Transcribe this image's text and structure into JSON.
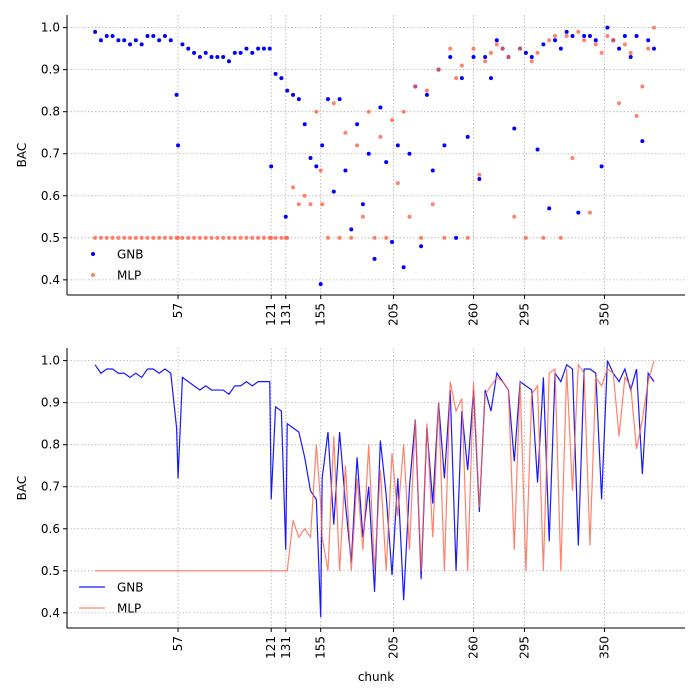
{
  "chart_data": [
    {
      "type": "scatter",
      "ylabel": "BAC",
      "xlim": [
        -19.3,
        405.3
      ],
      "ylim": [
        0.364,
        1.03
      ],
      "xticks": [
        57,
        121,
        131,
        155,
        205,
        260,
        295,
        350
      ],
      "yticks": [
        0.4,
        0.5,
        0.6,
        0.7,
        0.8,
        0.9,
        {
          "value": 1,
          "label": "1.0"
        }
      ],
      "grid": true,
      "legend": "lower left",
      "x": [
        0,
        4,
        8,
        12,
        16,
        20,
        24,
        28,
        32,
        36,
        40,
        44,
        48,
        52,
        56,
        57,
        60,
        64,
        68,
        72,
        76,
        80,
        84,
        88,
        92,
        96,
        100,
        104,
        108,
        112,
        116,
        120,
        121,
        124,
        128,
        131,
        132,
        136,
        140,
        144,
        148,
        152,
        155,
        156,
        160,
        164,
        168,
        172,
        176,
        180,
        184,
        188,
        192,
        196,
        200,
        204,
        208,
        212,
        216,
        220,
        224,
        228,
        232,
        236,
        240,
        244,
        248,
        252,
        256,
        260,
        264,
        268,
        272,
        276,
        280,
        284,
        288,
        292,
        296,
        300,
        304,
        308,
        312,
        316,
        320,
        324,
        328,
        332,
        336,
        340,
        344,
        348,
        352,
        356,
        360,
        364,
        368,
        372,
        376,
        380,
        384
      ],
      "series": [
        {
          "name": "GNB",
          "color": "#0000ff",
          "alpha": 1,
          "values": [
            0.99,
            0.97,
            0.98,
            0.98,
            0.97,
            0.97,
            0.96,
            0.97,
            0.96,
            0.98,
            0.98,
            0.97,
            0.98,
            0.97,
            0.84,
            0.72,
            0.96,
            0.95,
            0.94,
            0.93,
            0.94,
            0.93,
            0.93,
            0.93,
            0.92,
            0.94,
            0.94,
            0.95,
            0.94,
            0.95,
            0.95,
            0.95,
            0.67,
            0.89,
            0.88,
            0.55,
            0.85,
            0.84,
            0.83,
            0.77,
            0.69,
            0.67,
            0.39,
            0.72,
            0.83,
            0.61,
            0.83,
            0.66,
            0.52,
            0.77,
            0.58,
            0.7,
            0.45,
            0.81,
            0.68,
            0.49,
            0.72,
            0.43,
            0.7,
            0.86,
            0.48,
            0.84,
            0.66,
            0.9,
            0.72,
            0.93,
            0.5,
            0.88,
            0.74,
            0.93,
            0.64,
            0.93,
            0.88,
            0.97,
            0.95,
            0.93,
            0.76,
            0.95,
            0.94,
            0.93,
            0.71,
            0.96,
            0.57,
            0.97,
            0.95,
            0.99,
            0.98,
            0.56,
            0.98,
            0.98,
            0.97,
            0.67,
            1.0,
            0.97,
            0.95,
            0.98,
            0.93,
            0.98,
            0.73,
            0.97,
            0.95
          ]
        },
        {
          "name": "MLP",
          "color": "#ff6347",
          "alpha": 0.8,
          "values": [
            0.5,
            0.5,
            0.5,
            0.5,
            0.5,
            0.5,
            0.5,
            0.5,
            0.5,
            0.5,
            0.5,
            0.5,
            0.5,
            0.5,
            0.5,
            0.5,
            0.5,
            0.5,
            0.5,
            0.5,
            0.5,
            0.5,
            0.5,
            0.5,
            0.5,
            0.5,
            0.5,
            0.5,
            0.5,
            0.5,
            0.5,
            0.5,
            0.5,
            0.5,
            0.5,
            0.5,
            0.5,
            0.62,
            0.58,
            0.6,
            0.58,
            0.8,
            0.66,
            0.58,
            0.5,
            0.82,
            0.5,
            0.75,
            0.5,
            0.72,
            0.55,
            0.8,
            0.5,
            0.74,
            0.5,
            0.78,
            0.63,
            0.8,
            0.55,
            0.86,
            0.5,
            0.85,
            0.58,
            0.9,
            0.5,
            0.95,
            0.88,
            0.91,
            0.5,
            0.95,
            0.65,
            0.92,
            0.94,
            0.96,
            0.95,
            0.93,
            0.55,
            0.95,
            0.5,
            0.92,
            0.94,
            0.5,
            0.97,
            0.98,
            0.5,
            0.98,
            0.69,
            0.99,
            0.97,
            0.56,
            0.96,
            0.94,
            0.98,
            0.97,
            0.82,
            0.96,
            0.94,
            0.79,
            0.86,
            0.95,
            1.0
          ]
        }
      ]
    },
    {
      "type": "line",
      "ylabel": "BAC",
      "xlabel": "chunk",
      "xlim": [
        -19.3,
        405.3
      ],
      "ylim": [
        0.364,
        1.03
      ],
      "xticks": [
        57,
        121,
        131,
        155,
        205,
        260,
        295,
        350
      ],
      "yticks": [
        0.4,
        0.5,
        0.6,
        0.7,
        0.8,
        0.9,
        {
          "value": 1,
          "label": "1.0"
        }
      ],
      "grid": true,
      "legend": "lower left",
      "x": [
        0,
        4,
        8,
        12,
        16,
        20,
        24,
        28,
        32,
        36,
        40,
        44,
        48,
        52,
        56,
        57,
        60,
        64,
        68,
        72,
        76,
        80,
        84,
        88,
        92,
        96,
        100,
        104,
        108,
        112,
        116,
        120,
        121,
        124,
        128,
        131,
        132,
        136,
        140,
        144,
        148,
        152,
        155,
        156,
        160,
        164,
        168,
        172,
        176,
        180,
        184,
        188,
        192,
        196,
        200,
        204,
        208,
        212,
        216,
        220,
        224,
        228,
        232,
        236,
        240,
        244,
        248,
        252,
        256,
        260,
        264,
        268,
        272,
        276,
        280,
        284,
        288,
        292,
        296,
        300,
        304,
        308,
        312,
        316,
        320,
        324,
        328,
        332,
        336,
        340,
        344,
        348,
        352,
        356,
        360,
        364,
        368,
        372,
        376,
        380,
        384
      ],
      "series": [
        {
          "name": "GNB",
          "color": "#0000ff",
          "alpha": 0.9,
          "values": [
            0.99,
            0.97,
            0.98,
            0.98,
            0.97,
            0.97,
            0.96,
            0.97,
            0.96,
            0.98,
            0.98,
            0.97,
            0.98,
            0.97,
            0.84,
            0.72,
            0.96,
            0.95,
            0.94,
            0.93,
            0.94,
            0.93,
            0.93,
            0.93,
            0.92,
            0.94,
            0.94,
            0.95,
            0.94,
            0.95,
            0.95,
            0.95,
            0.67,
            0.89,
            0.88,
            0.55,
            0.85,
            0.84,
            0.83,
            0.77,
            0.69,
            0.67,
            0.39,
            0.72,
            0.83,
            0.61,
            0.83,
            0.66,
            0.52,
            0.77,
            0.58,
            0.7,
            0.45,
            0.81,
            0.68,
            0.49,
            0.72,
            0.43,
            0.7,
            0.86,
            0.48,
            0.84,
            0.66,
            0.9,
            0.72,
            0.93,
            0.5,
            0.88,
            0.74,
            0.93,
            0.64,
            0.93,
            0.88,
            0.97,
            0.95,
            0.93,
            0.76,
            0.95,
            0.94,
            0.93,
            0.71,
            0.96,
            0.57,
            0.97,
            0.95,
            0.99,
            0.98,
            0.56,
            0.98,
            0.98,
            0.97,
            0.67,
            1.0,
            0.97,
            0.95,
            0.98,
            0.93,
            0.98,
            0.73,
            0.97,
            0.95
          ]
        },
        {
          "name": "MLP",
          "color": "#ff6347",
          "alpha": 0.8,
          "values": [
            0.5,
            0.5,
            0.5,
            0.5,
            0.5,
            0.5,
            0.5,
            0.5,
            0.5,
            0.5,
            0.5,
            0.5,
            0.5,
            0.5,
            0.5,
            0.5,
            0.5,
            0.5,
            0.5,
            0.5,
            0.5,
            0.5,
            0.5,
            0.5,
            0.5,
            0.5,
            0.5,
            0.5,
            0.5,
            0.5,
            0.5,
            0.5,
            0.5,
            0.5,
            0.5,
            0.5,
            0.5,
            0.62,
            0.58,
            0.6,
            0.58,
            0.8,
            0.66,
            0.58,
            0.5,
            0.82,
            0.5,
            0.75,
            0.5,
            0.72,
            0.55,
            0.8,
            0.5,
            0.74,
            0.5,
            0.78,
            0.63,
            0.8,
            0.55,
            0.86,
            0.5,
            0.85,
            0.58,
            0.9,
            0.5,
            0.95,
            0.88,
            0.91,
            0.5,
            0.95,
            0.65,
            0.92,
            0.94,
            0.96,
            0.95,
            0.93,
            0.55,
            0.95,
            0.5,
            0.92,
            0.94,
            0.5,
            0.97,
            0.98,
            0.5,
            0.98,
            0.69,
            0.99,
            0.97,
            0.56,
            0.96,
            0.94,
            0.98,
            0.97,
            0.82,
            0.96,
            0.94,
            0.79,
            0.86,
            0.95,
            1.0
          ]
        }
      ]
    }
  ]
}
